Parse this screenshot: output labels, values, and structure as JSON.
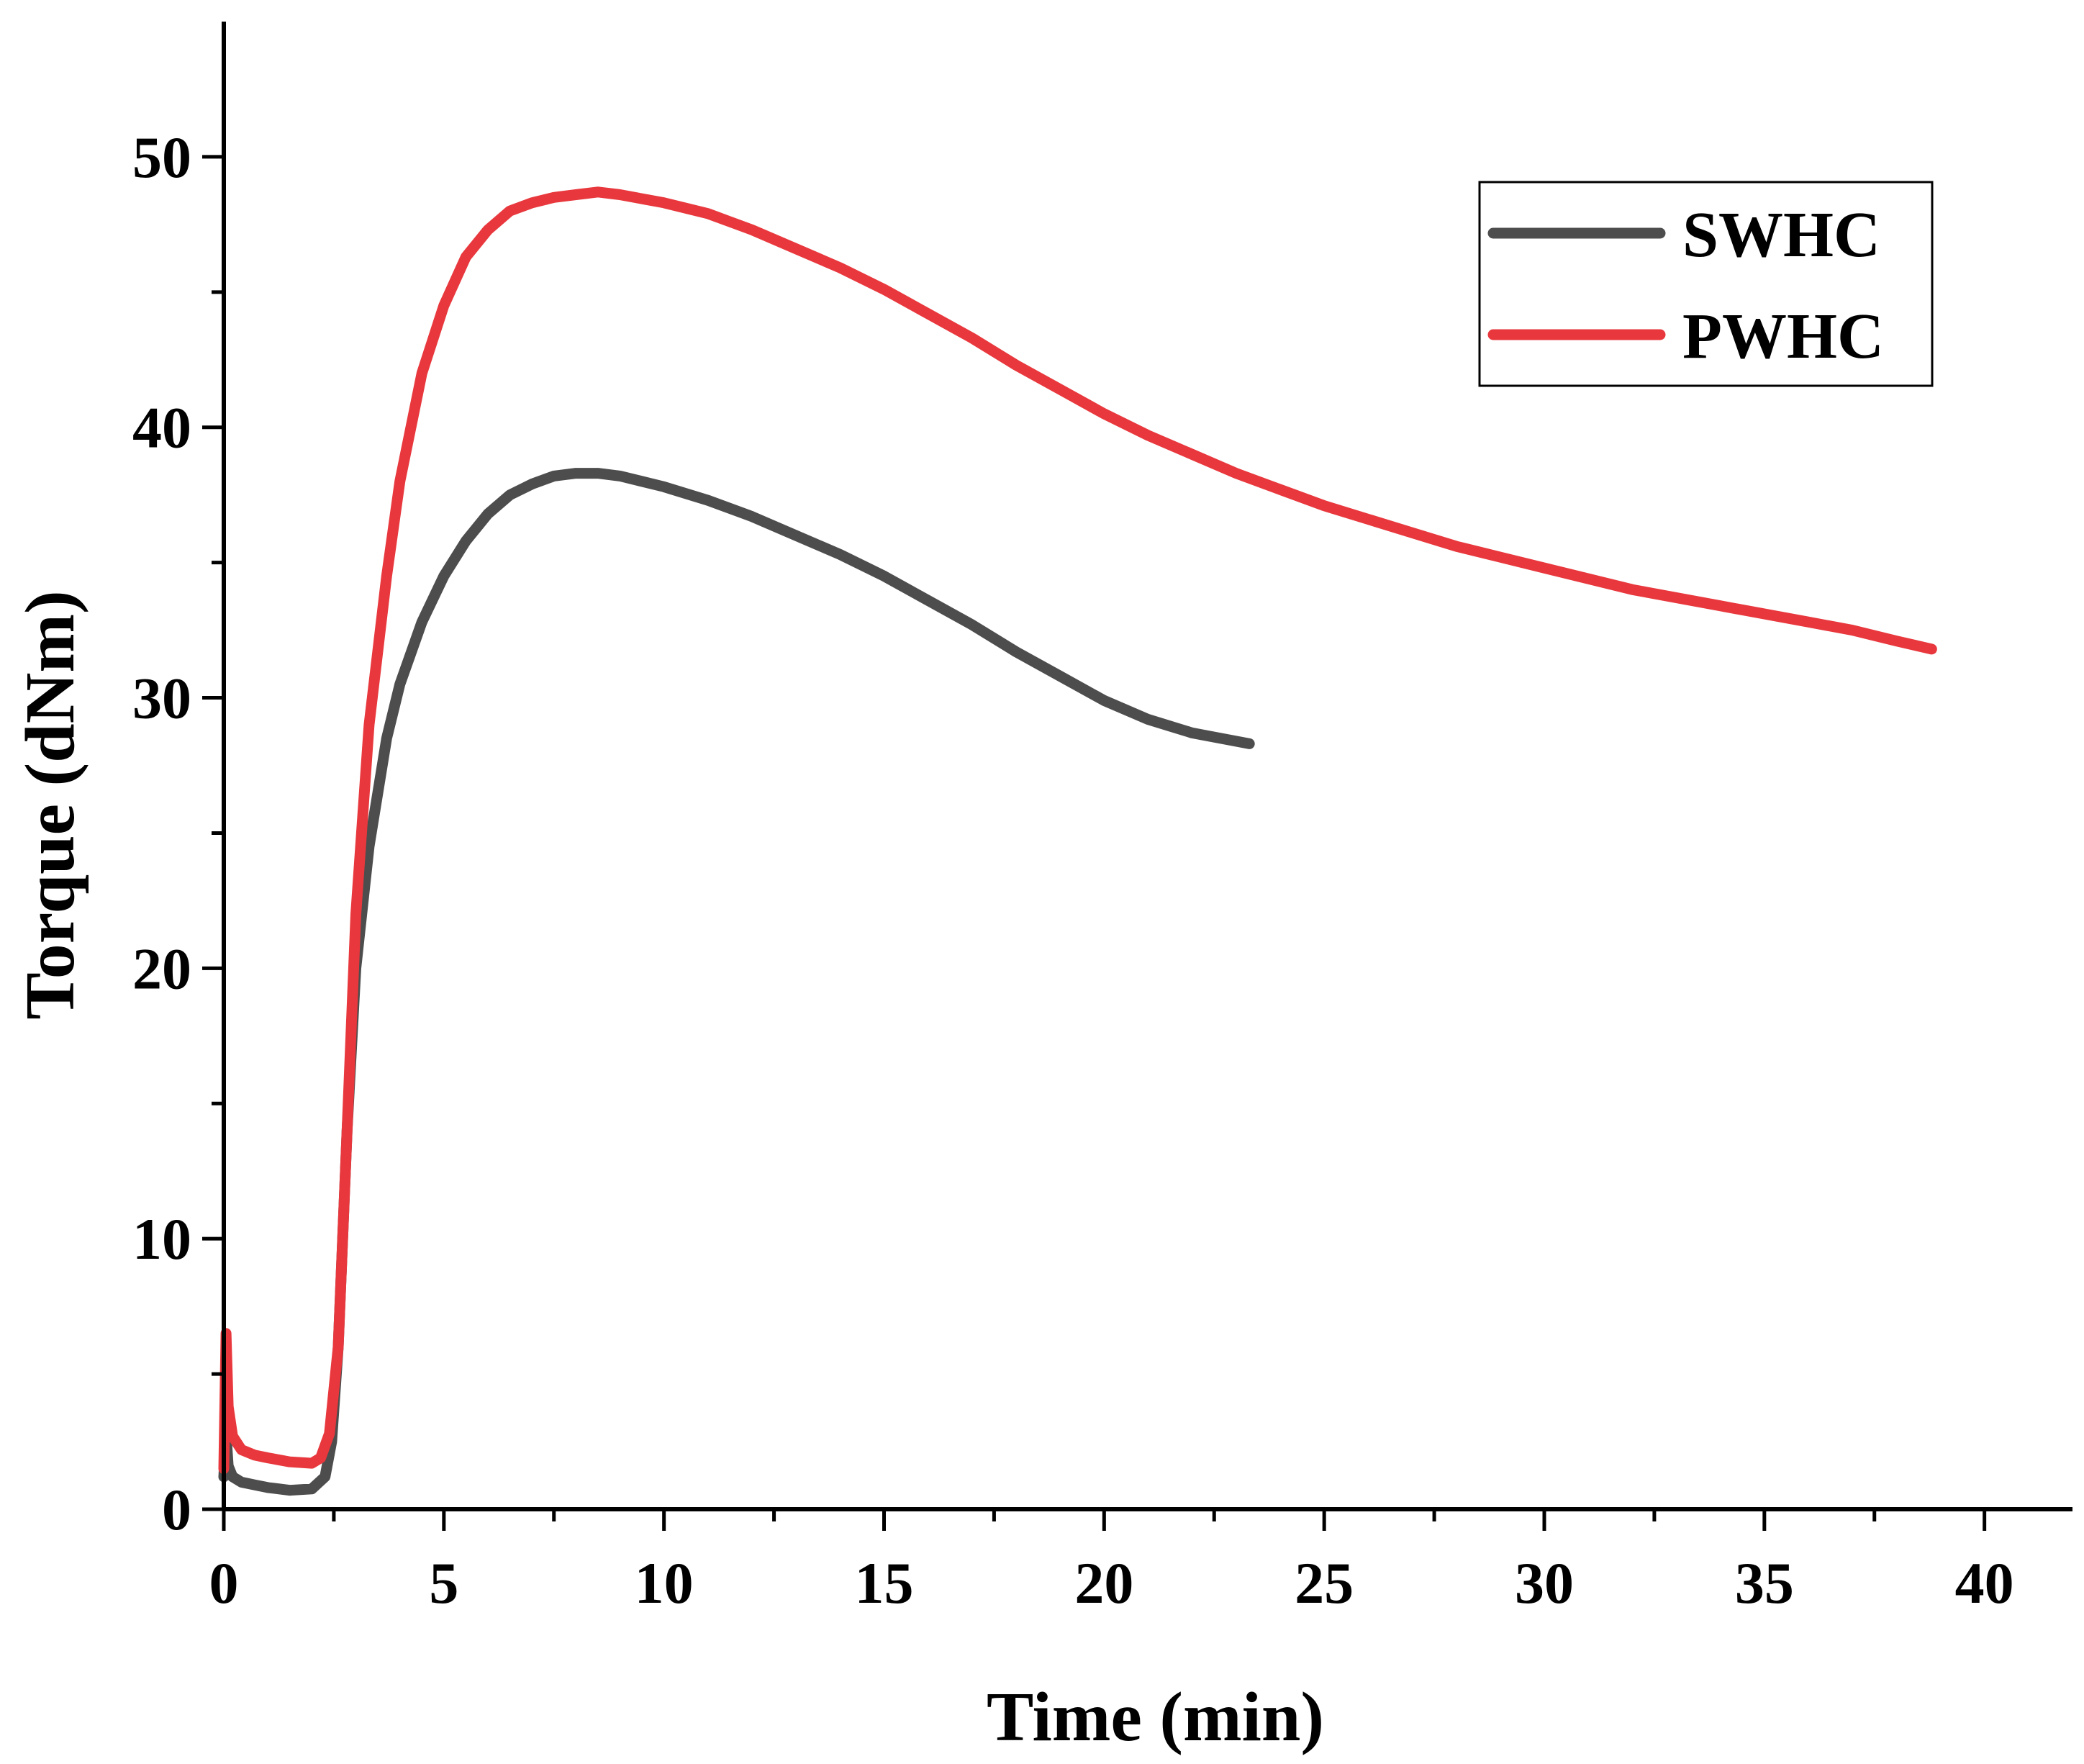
{
  "chart_data": {
    "type": "line",
    "title": "",
    "xlabel": "Time (min)",
    "ylabel": "Torque (dNm)",
    "xlim": [
      0,
      42
    ],
    "ylim": [
      0,
      55
    ],
    "x_ticks": [
      0,
      5,
      10,
      15,
      20,
      25,
      30,
      35,
      40
    ],
    "y_ticks": [
      0,
      10,
      20,
      30,
      40,
      50
    ],
    "grid": false,
    "legend_position": "top-right",
    "series": [
      {
        "name": "SWHC",
        "color": "#4d4d4d",
        "x": [
          0,
          0.05,
          0.1,
          0.2,
          0.4,
          0.7,
          1.0,
          1.5,
          2.0,
          2.3,
          2.45,
          2.6,
          2.8,
          3.0,
          3.3,
          3.7,
          4.0,
          4.5,
          5.0,
          5.5,
          6.0,
          6.5,
          7.0,
          7.5,
          8.0,
          8.5,
          9.0,
          10,
          11,
          12,
          13,
          14,
          15,
          16,
          17,
          18,
          19,
          20,
          21,
          22,
          23.3
        ],
        "y": [
          1.2,
          2.8,
          1.6,
          1.2,
          1.0,
          0.9,
          0.8,
          0.7,
          0.75,
          1.2,
          2.5,
          6,
          14,
          20,
          24.5,
          28.5,
          30.5,
          32.8,
          34.5,
          35.8,
          36.8,
          37.5,
          37.9,
          38.2,
          38.3,
          38.3,
          38.2,
          37.8,
          37.3,
          36.7,
          36.0,
          35.3,
          34.5,
          33.6,
          32.7,
          31.7,
          30.8,
          29.9,
          29.2,
          28.7,
          28.3
        ]
      },
      {
        "name": "PWHC",
        "color": "#e8383d",
        "x": [
          0,
          0.05,
          0.1,
          0.2,
          0.4,
          0.7,
          1.0,
          1.5,
          2.0,
          2.2,
          2.4,
          2.6,
          2.8,
          3.0,
          3.3,
          3.7,
          4.0,
          4.5,
          5.0,
          5.5,
          6.0,
          6.5,
          7.0,
          7.5,
          8.0,
          8.5,
          9.0,
          10,
          11,
          12,
          13,
          14,
          15,
          16,
          17,
          18,
          19,
          20,
          21,
          22,
          23,
          24,
          25,
          26,
          27,
          28,
          29,
          30,
          31,
          32,
          33,
          34,
          35,
          36,
          37,
          38,
          38.8
        ],
        "y": [
          1.5,
          6.5,
          3.8,
          2.7,
          2.2,
          2.0,
          1.9,
          1.75,
          1.7,
          1.9,
          2.8,
          6,
          14,
          22,
          29,
          34.5,
          38,
          42,
          44.5,
          46.3,
          47.3,
          48.0,
          48.3,
          48.5,
          48.6,
          48.7,
          48.6,
          48.3,
          47.9,
          47.3,
          46.6,
          45.9,
          45.1,
          44.2,
          43.3,
          42.3,
          41.4,
          40.5,
          39.7,
          39.0,
          38.3,
          37.7,
          37.1,
          36.6,
          36.1,
          35.6,
          35.2,
          34.8,
          34.4,
          34.0,
          33.7,
          33.4,
          33.1,
          32.8,
          32.5,
          32.1,
          31.8
        ]
      }
    ]
  }
}
